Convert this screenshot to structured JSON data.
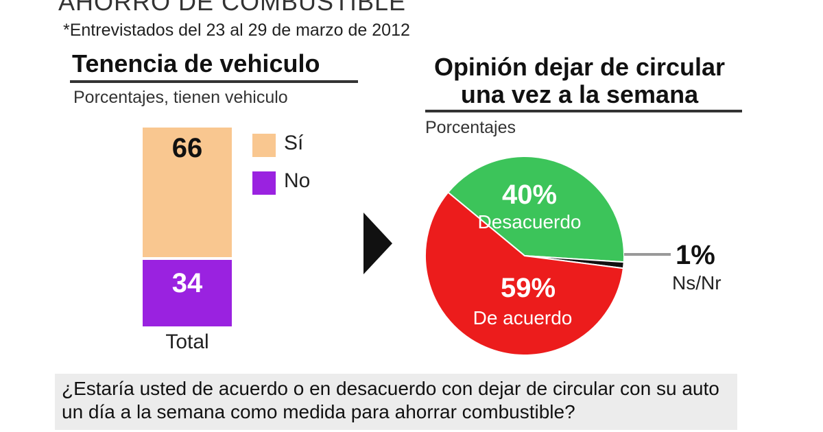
{
  "header": {
    "title": "AHORRO DE COMBUSTIBLE",
    "survey_note": "*Entrevistados del 23 al 29 de marzo de 2012"
  },
  "left_panel": {
    "title": "Tenencia de vehiculo",
    "subtitle": "Porcentajes, tienen vehiculo"
  },
  "right_panel": {
    "title_line1": "Opinión dejar de circular",
    "title_line2": "una vez a la semana",
    "subtitle": "Porcentajes"
  },
  "question": {
    "line1": "¿Estaría usted de acuerdo o en desacuerdo con dejar de circular con su auto",
    "line2": "un día a la semana como medida para ahorrar combustible?"
  },
  "chart_data": [
    {
      "type": "bar",
      "stacked": true,
      "categories": [
        "Total"
      ],
      "series": [
        {
          "name": "Sí",
          "values": [
            66
          ],
          "color": "#f9c790"
        },
        {
          "name": "No",
          "values": [
            34
          ],
          "color": "#9a22e0"
        }
      ],
      "ylim": [
        0,
        100
      ],
      "legend": "right"
    },
    {
      "type": "pie",
      "slices": [
        {
          "label": "40%",
          "name": "Desacuerdo",
          "value": 40,
          "color": "#3cc45a"
        },
        {
          "label": "59%",
          "name": "De acuerdo",
          "value": 59,
          "color": "#ec1c1c"
        },
        {
          "label": "1%",
          "name": "Ns/Nr",
          "value": 1,
          "color": "#111111"
        }
      ]
    }
  ]
}
